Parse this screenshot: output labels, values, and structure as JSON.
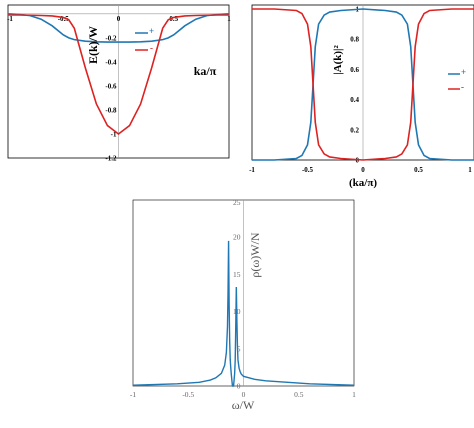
{
  "colors": {
    "plus": "#1f77b4",
    "minus": "#dd2222",
    "dos": "#1f77b4",
    "frame": "#000000",
    "gray_axis": "#999999"
  },
  "chart_data": [
    {
      "id": "A",
      "type": "line",
      "xlabel": "ka/π",
      "ylabel": "E(k)/W",
      "xlim": [
        -1,
        1
      ],
      "ylim": [
        -1.2,
        0.04
      ],
      "xticks": [
        "-1",
        "-0.5",
        "0",
        "0.5",
        "1"
      ],
      "yticks": [
        "-0.2",
        "-0.4",
        "-0.6",
        "-0.8",
        "-1",
        "-1.2"
      ],
      "legend": [
        "+",
        "-"
      ],
      "legend_position": "top-right",
      "series": [
        {
          "name": "+",
          "x": [
            -1,
            -0.9,
            -0.8,
            -0.7,
            -0.6,
            -0.5,
            -0.45,
            -0.4,
            -0.3,
            -0.2,
            -0.1,
            0,
            0.1,
            0.2,
            0.3,
            0.4,
            0.45,
            0.5,
            0.6,
            0.7,
            0.8,
            0.9,
            1
          ],
          "y": [
            0,
            -0.005,
            -0.015,
            -0.045,
            -0.1,
            -0.175,
            -0.2,
            -0.215,
            -0.228,
            -0.233,
            -0.235,
            -0.235,
            -0.235,
            -0.233,
            -0.228,
            -0.215,
            -0.2,
            -0.175,
            -0.1,
            -0.045,
            -0.015,
            -0.005,
            0
          ]
        },
        {
          "name": "-",
          "x": [
            -1,
            -0.9,
            -0.8,
            -0.7,
            -0.6,
            -0.5,
            -0.45,
            -0.4,
            -0.3,
            -0.2,
            -0.1,
            0,
            0.1,
            0.2,
            0.3,
            0.4,
            0.45,
            0.5,
            0.6,
            0.7,
            0.8,
            0.9,
            1
          ],
          "y": [
            -0.01,
            -0.01,
            -0.012,
            -0.014,
            -0.018,
            -0.03,
            -0.05,
            -0.12,
            -0.45,
            -0.75,
            -0.93,
            -1,
            -0.93,
            -0.75,
            -0.45,
            -0.12,
            -0.05,
            -0.03,
            -0.018,
            -0.014,
            -0.012,
            -0.01,
            -0.01
          ]
        }
      ]
    },
    {
      "id": "B",
      "type": "line",
      "xlabel": "(ka/π)",
      "ylabel": "|A(k)|²",
      "xlim": [
        -1,
        1
      ],
      "ylim": [
        0,
        1
      ],
      "xticks": [
        "-1",
        "-0.5",
        "0",
        "0.5",
        "1"
      ],
      "yticks": [
        "0",
        "0.2",
        "0.4",
        "0.6",
        "0.8",
        "1"
      ],
      "legend": [
        "+",
        "-"
      ],
      "legend_position": "right",
      "series": [
        {
          "name": "+",
          "x": [
            -1,
            -0.8,
            -0.6,
            -0.55,
            -0.5,
            -0.47,
            -0.45,
            -0.43,
            -0.4,
            -0.35,
            -0.3,
            -0.2,
            0,
            0.2,
            0.3,
            0.35,
            0.4,
            0.43,
            0.45,
            0.47,
            0.5,
            0.55,
            0.6,
            0.8,
            1
          ],
          "y": [
            0,
            0,
            0.01,
            0.03,
            0.1,
            0.25,
            0.5,
            0.75,
            0.9,
            0.96,
            0.98,
            0.99,
            1,
            0.99,
            0.98,
            0.96,
            0.9,
            0.75,
            0.5,
            0.25,
            0.1,
            0.03,
            0.01,
            0,
            0
          ]
        },
        {
          "name": "-",
          "x": [
            -1,
            -0.8,
            -0.6,
            -0.55,
            -0.5,
            -0.47,
            -0.45,
            -0.43,
            -0.4,
            -0.35,
            -0.3,
            -0.2,
            0,
            0.2,
            0.3,
            0.35,
            0.4,
            0.43,
            0.45,
            0.47,
            0.5,
            0.55,
            0.6,
            0.8,
            1
          ],
          "y": [
            1,
            1,
            0.99,
            0.97,
            0.9,
            0.75,
            0.5,
            0.25,
            0.1,
            0.04,
            0.02,
            0.01,
            0,
            0.01,
            0.02,
            0.04,
            0.1,
            0.25,
            0.5,
            0.75,
            0.9,
            0.97,
            0.99,
            1,
            1
          ]
        }
      ]
    },
    {
      "id": "C",
      "type": "line",
      "xlabel": "ω/W",
      "ylabel": "ρ(ω)W/N",
      "xlim": [
        -1,
        1
      ],
      "ylim": [
        0,
        25
      ],
      "xticks": [
        "-1",
        "-0.5",
        "0",
        "0.5",
        "1"
      ],
      "yticks": [
        "0",
        "5",
        "10",
        "15",
        "20",
        "25"
      ],
      "series": [
        {
          "name": "",
          "x": [
            -1,
            -0.6,
            -0.4,
            -0.3,
            -0.25,
            -0.2,
            -0.17,
            -0.155,
            -0.145,
            -0.14,
            -0.135,
            -0.13,
            -0.125,
            -0.12,
            -0.115,
            -0.11,
            -0.1,
            -0.09,
            -0.08,
            -0.075,
            -0.07,
            -0.065,
            -0.06,
            -0.055,
            -0.05,
            -0.04,
            -0.03,
            -0.02,
            0,
            0.05,
            0.1,
            0.2,
            0.4,
            0.6,
            1
          ],
          "y": [
            0.1,
            0.3,
            0.5,
            0.8,
            1.1,
            1.7,
            2.8,
            4.5,
            8,
            12.5,
            19.5,
            11,
            6,
            3.5,
            2.4,
            1.5,
            0,
            0,
            1.7,
            3.5,
            8,
            13.3,
            9,
            5.5,
            3.5,
            2.4,
            1.9,
            1.6,
            1.3,
            1.1,
            0.9,
            0.7,
            0.5,
            0.3,
            0.1
          ]
        }
      ]
    }
  ]
}
